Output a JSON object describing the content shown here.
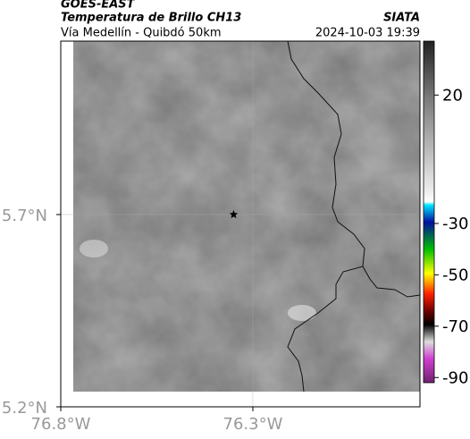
{
  "header": {
    "satellite": "GOES-EAST",
    "title": "Temperatura de Brillo CH13",
    "subtitle": "Vía Medellín - Quibdó 50km",
    "source": "SIATA",
    "timestamp": "2024-10-03 19:39"
  },
  "map": {
    "xlim": [
      -76.8,
      -75.865
    ],
    "ylim": [
      5.2,
      6.151
    ],
    "xticks": [
      {
        "value": -76.8,
        "label": "76.8°W"
      },
      {
        "value": -76.3,
        "label": "76.3°W"
      }
    ],
    "yticks": [
      {
        "value": 5.7,
        "label": "5.7°N"
      },
      {
        "value": 5.2,
        "label": "5.2°N"
      }
    ],
    "grid": true,
    "marker": {
      "lon": -76.35,
      "lat": 5.7
    }
  },
  "colorbar": {
    "lim": [
      -92,
      41
    ],
    "ticks": [
      20,
      -30,
      -50,
      -70,
      -90
    ]
  }
}
